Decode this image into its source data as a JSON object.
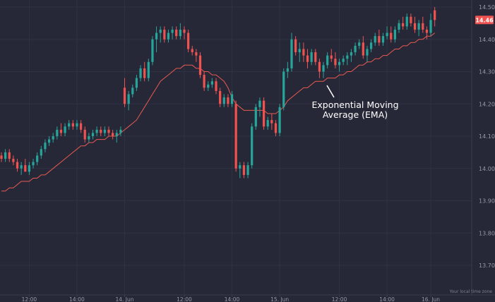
{
  "chart_data": {
    "type": "candlestick",
    "colors": {
      "background": "#262838",
      "up": "#26a69a",
      "down": "#ef5350",
      "ema": "#e85a4f",
      "grid": "#2f3244",
      "axis": "#3a3d50",
      "badge": "#ef5350"
    },
    "ylim": [
      13.6,
      14.51
    ],
    "y_ticks": [
      {
        "value": 14.5,
        "label": "14.50"
      },
      {
        "value": 14.4,
        "label": "14.40"
      },
      {
        "value": 14.3,
        "label": "14.30"
      },
      {
        "value": 14.2,
        "label": "14.20"
      },
      {
        "value": 14.1,
        "label": "14.10"
      },
      {
        "value": 14.0,
        "label": "14.00"
      },
      {
        "value": 13.9,
        "label": "13.90"
      },
      {
        "value": 13.8,
        "label": "13.80"
      },
      {
        "value": 13.7,
        "label": "13.70"
      }
    ],
    "x_ticks": [
      {
        "index": 7,
        "label": "12:00"
      },
      {
        "index": 19,
        "label": "14:00"
      },
      {
        "index": 31,
        "label": "14. Jun"
      },
      {
        "index": 46,
        "label": "12:00"
      },
      {
        "index": 58,
        "label": "14:00"
      },
      {
        "index": 70,
        "label": "15. Jun"
      },
      {
        "index": 85,
        "label": "12:00"
      },
      {
        "index": 97,
        "label": "14:00"
      },
      {
        "index": 108,
        "label": "16. Jun"
      }
    ],
    "candles": [
      [
        14.04,
        14.05,
        14.02,
        14.03
      ],
      [
        14.03,
        14.06,
        14.02,
        14.05
      ],
      [
        14.05,
        14.06,
        14.02,
        14.03
      ],
      [
        14.03,
        14.04,
        14.01,
        14.02
      ],
      [
        14.02,
        14.03,
        13.99,
        14.0
      ],
      [
        14.0,
        14.02,
        13.98,
        14.01
      ],
      [
        14.01,
        14.03,
        13.99,
        13.99
      ],
      [
        13.99,
        14.02,
        13.98,
        14.01
      ],
      [
        14.01,
        14.03,
        14.0,
        14.02
      ],
      [
        14.02,
        14.05,
        14.01,
        14.04
      ],
      [
        14.04,
        14.07,
        14.03,
        14.06
      ],
      [
        14.06,
        14.09,
        14.05,
        14.08
      ],
      [
        14.08,
        14.1,
        14.07,
        14.09
      ],
      [
        14.09,
        14.11,
        14.08,
        14.1
      ],
      [
        14.1,
        14.13,
        14.09,
        14.12
      ],
      [
        14.12,
        14.14,
        14.1,
        14.11
      ],
      [
        14.11,
        14.14,
        14.1,
        14.13
      ],
      [
        14.13,
        14.15,
        14.12,
        14.14
      ],
      [
        14.14,
        14.15,
        14.12,
        14.13
      ],
      [
        14.13,
        14.15,
        14.12,
        14.14
      ],
      [
        14.14,
        14.15,
        14.11,
        14.12
      ],
      [
        14.12,
        14.13,
        14.08,
        14.09
      ],
      [
        14.09,
        14.11,
        14.08,
        14.1
      ],
      [
        14.1,
        14.12,
        14.09,
        14.11
      ],
      [
        14.11,
        14.13,
        14.1,
        14.12
      ],
      [
        14.12,
        14.13,
        14.1,
        14.11
      ],
      [
        14.11,
        14.13,
        14.1,
        14.12
      ],
      [
        14.12,
        14.13,
        14.1,
        14.11
      ],
      [
        14.11,
        14.12,
        14.09,
        14.1
      ],
      [
        14.1,
        14.12,
        14.08,
        14.11
      ],
      [
        14.11,
        14.13,
        14.1,
        14.12
      ],
      [
        14.25,
        14.28,
        14.19,
        14.2
      ],
      [
        14.2,
        14.24,
        14.18,
        14.23
      ],
      [
        14.23,
        14.26,
        14.22,
        14.25
      ],
      [
        14.25,
        14.29,
        14.24,
        14.28
      ],
      [
        14.28,
        14.32,
        14.27,
        14.31
      ],
      [
        14.31,
        14.33,
        14.27,
        14.28
      ],
      [
        14.28,
        14.34,
        14.27,
        14.33
      ],
      [
        14.33,
        14.41,
        14.32,
        14.4
      ],
      [
        14.4,
        14.44,
        14.36,
        14.42
      ],
      [
        14.42,
        14.44,
        14.39,
        14.43
      ],
      [
        14.43,
        14.44,
        14.39,
        14.4
      ],
      [
        14.4,
        14.43,
        14.39,
        14.42
      ],
      [
        14.42,
        14.44,
        14.4,
        14.43
      ],
      [
        14.43,
        14.44,
        14.4,
        14.41
      ],
      [
        14.41,
        14.45,
        14.4,
        14.43
      ],
      [
        14.43,
        14.44,
        14.4,
        14.42
      ],
      [
        14.42,
        14.43,
        14.36,
        14.37
      ],
      [
        14.37,
        14.38,
        14.35,
        14.36
      ],
      [
        14.36,
        14.37,
        14.33,
        14.35
      ],
      [
        14.35,
        14.36,
        14.28,
        14.29
      ],
      [
        14.29,
        14.3,
        14.24,
        14.25
      ],
      [
        14.25,
        14.27,
        14.24,
        14.26
      ],
      [
        14.26,
        14.28,
        14.25,
        14.27
      ],
      [
        14.27,
        14.28,
        14.23,
        14.24
      ],
      [
        14.24,
        14.25,
        14.19,
        14.2
      ],
      [
        14.2,
        14.23,
        14.19,
        14.22
      ],
      [
        14.22,
        14.23,
        14.19,
        14.2
      ],
      [
        14.2,
        14.24,
        14.19,
        14.23
      ],
      [
        14.2,
        14.21,
        13.99,
        14.0
      ],
      [
        14.0,
        14.02,
        13.97,
        14.01
      ],
      [
        14.01,
        14.02,
        13.97,
        13.98
      ],
      [
        13.98,
        14.02,
        13.97,
        14.01
      ],
      [
        14.01,
        14.14,
        14.0,
        14.13
      ],
      [
        14.13,
        14.2,
        14.12,
        14.19
      ],
      [
        14.19,
        14.22,
        14.16,
        14.21
      ],
      [
        14.21,
        14.22,
        14.12,
        14.13
      ],
      [
        14.13,
        14.16,
        14.12,
        14.15
      ],
      [
        14.15,
        14.17,
        14.12,
        14.14
      ],
      [
        14.14,
        14.15,
        14.1,
        14.11
      ],
      [
        14.11,
        14.2,
        14.1,
        14.19
      ],
      [
        14.19,
        14.31,
        14.18,
        14.3
      ],
      [
        14.3,
        14.33,
        14.28,
        14.31
      ],
      [
        14.31,
        14.42,
        14.3,
        14.4
      ],
      [
        14.4,
        14.41,
        14.35,
        14.36
      ],
      [
        14.36,
        14.39,
        14.33,
        14.37
      ],
      [
        14.37,
        14.39,
        14.33,
        14.35
      ],
      [
        14.35,
        14.37,
        14.31,
        14.33
      ],
      [
        14.33,
        14.37,
        14.32,
        14.36
      ],
      [
        14.36,
        14.37,
        14.32,
        14.33
      ],
      [
        14.33,
        14.34,
        14.28,
        14.3
      ],
      [
        14.3,
        14.33,
        14.28,
        14.32
      ],
      [
        14.32,
        14.36,
        14.31,
        14.35
      ],
      [
        14.35,
        14.37,
        14.33,
        14.34
      ],
      [
        14.34,
        14.36,
        14.31,
        14.32
      ],
      [
        14.32,
        14.34,
        14.3,
        14.33
      ],
      [
        14.33,
        14.35,
        14.32,
        14.34
      ],
      [
        14.34,
        14.36,
        14.32,
        14.35
      ],
      [
        14.35,
        14.37,
        14.33,
        14.36
      ],
      [
        14.36,
        14.39,
        14.35,
        14.38
      ],
      [
        14.38,
        14.4,
        14.37,
        14.39
      ],
      [
        14.39,
        14.41,
        14.34,
        14.35
      ],
      [
        14.35,
        14.38,
        14.33,
        14.37
      ],
      [
        14.37,
        14.4,
        14.36,
        14.39
      ],
      [
        14.39,
        14.42,
        14.38,
        14.41
      ],
      [
        14.41,
        14.43,
        14.38,
        14.39
      ],
      [
        14.39,
        14.42,
        14.38,
        14.41
      ],
      [
        14.41,
        14.44,
        14.4,
        14.42
      ],
      [
        14.42,
        14.44,
        14.39,
        14.4
      ],
      [
        14.4,
        14.44,
        14.39,
        14.43
      ],
      [
        14.43,
        14.46,
        14.42,
        14.45
      ],
      [
        14.45,
        14.47,
        14.43,
        14.44
      ],
      [
        14.44,
        14.48,
        14.43,
        14.47
      ],
      [
        14.47,
        14.48,
        14.44,
        14.45
      ],
      [
        14.45,
        14.47,
        14.42,
        14.43
      ],
      [
        14.43,
        14.46,
        14.41,
        14.45
      ],
      [
        14.45,
        14.47,
        14.42,
        14.43
      ],
      [
        14.43,
        14.44,
        14.4,
        14.42
      ],
      [
        14.42,
        14.48,
        14.41,
        14.46
      ],
      [
        14.49,
        14.5,
        14.44,
        14.46
      ]
    ],
    "ema": [
      13.93,
      13.93,
      13.94,
      13.94,
      13.95,
      13.96,
      13.96,
      13.96,
      13.97,
      13.97,
      13.98,
      13.98,
      13.99,
      14.0,
      14.01,
      14.02,
      14.03,
      14.04,
      14.05,
      14.06,
      14.07,
      14.07,
      14.08,
      14.08,
      14.09,
      14.09,
      14.09,
      14.1,
      14.1,
      14.1,
      14.11,
      14.12,
      14.13,
      14.14,
      14.15,
      14.17,
      14.19,
      14.21,
      14.23,
      14.25,
      14.27,
      14.28,
      14.29,
      14.3,
      14.31,
      14.31,
      14.32,
      14.32,
      14.32,
      14.31,
      14.31,
      14.3,
      14.3,
      14.29,
      14.29,
      14.28,
      14.27,
      14.25,
      14.22,
      14.2,
      14.19,
      14.18,
      14.18,
      14.18,
      14.18,
      14.18,
      14.18,
      14.17,
      14.17,
      14.17,
      14.18,
      14.19,
      14.21,
      14.22,
      14.23,
      14.24,
      14.25,
      14.25,
      14.26,
      14.27,
      14.27,
      14.27,
      14.28,
      14.28,
      14.28,
      14.29,
      14.29,
      14.3,
      14.3,
      14.31,
      14.32,
      14.32,
      14.33,
      14.33,
      14.34,
      14.34,
      14.35,
      14.35,
      14.36,
      14.37,
      14.37,
      14.38,
      14.38,
      14.39,
      14.39,
      14.4,
      14.4,
      14.41,
      14.41,
      14.42
    ],
    "last_price": {
      "value": 14.46,
      "label": "14.46"
    },
    "annotation": {
      "line1": "Exponential Moving",
      "line2": "Average (EMA)",
      "pointer_index": 81,
      "pointer_value": 14.26
    },
    "watermark_note": "Your local time zone"
  }
}
